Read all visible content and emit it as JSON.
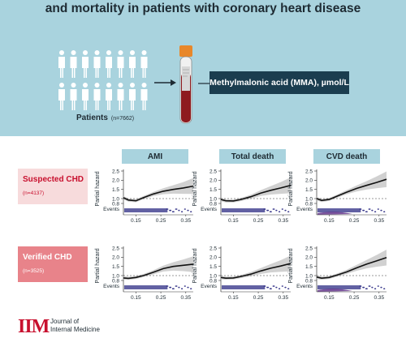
{
  "header": {
    "title": "and mortality in patients with coronary heart disease"
  },
  "patients": {
    "label": "Patients",
    "count": "(n=7662)"
  },
  "biomarker_label": "Methylmalonic acid (MMA), µmol/L",
  "columns": [
    "AMI",
    "Total death",
    "CVD death"
  ],
  "rows": [
    {
      "label": "Suspected CHD",
      "n": "(n=4137)",
      "bg": "#f7dbdc",
      "color": "#c8102e"
    },
    {
      "label": "Verified CHD",
      "n": "(n=3525)",
      "bg": "#e8838a",
      "color": "#ffffff"
    }
  ],
  "axis": {
    "ylabel": "Partial hazard",
    "events_label": "Events",
    "yticks": [
      "2.5",
      "2.0",
      "1.5",
      "1.0",
      "0.8"
    ],
    "xticks": [
      "0.15",
      "0.25",
      "0.35"
    ]
  },
  "chart_data": [
    {
      "type": "line",
      "row": "Suspected CHD",
      "column": "AMI",
      "x": [
        0.1,
        0.12,
        0.15,
        0.18,
        0.22,
        0.26,
        0.3,
        0.34,
        0.38
      ],
      "y": [
        1.05,
        0.92,
        0.88,
        1.05,
        1.25,
        1.4,
        1.5,
        1.58,
        1.68
      ],
      "reference": 1.0,
      "ylim": [
        0.6,
        2.6
      ],
      "xlim": [
        0.1,
        0.38
      ]
    },
    {
      "type": "line",
      "row": "Suspected CHD",
      "column": "Total death",
      "x": [
        0.1,
        0.12,
        0.15,
        0.18,
        0.22,
        0.26,
        0.3,
        0.34,
        0.38
      ],
      "y": [
        0.95,
        0.88,
        0.87,
        0.95,
        1.1,
        1.3,
        1.45,
        1.58,
        1.72
      ],
      "reference": 1.0,
      "ylim": [
        0.6,
        2.6
      ],
      "xlim": [
        0.1,
        0.38
      ]
    },
    {
      "type": "line",
      "row": "Suspected CHD",
      "column": "CVD death",
      "x": [
        0.1,
        0.12,
        0.15,
        0.18,
        0.22,
        0.26,
        0.3,
        0.34,
        0.38
      ],
      "y": [
        1.0,
        0.9,
        0.95,
        1.12,
        1.35,
        1.55,
        1.72,
        1.88,
        2.05
      ],
      "reference": 1.0,
      "ylim": [
        0.6,
        2.6
      ],
      "xlim": [
        0.1,
        0.38
      ]
    },
    {
      "type": "line",
      "row": "Verified CHD",
      "column": "AMI",
      "x": [
        0.1,
        0.12,
        0.15,
        0.18,
        0.22,
        0.26,
        0.3,
        0.34,
        0.38
      ],
      "y": [
        0.87,
        0.85,
        0.9,
        1.0,
        1.18,
        1.38,
        1.5,
        1.56,
        1.62
      ],
      "reference": 1.0,
      "ylim": [
        0.6,
        2.6
      ],
      "xlim": [
        0.1,
        0.38
      ]
    },
    {
      "type": "line",
      "row": "Verified CHD",
      "column": "Total death",
      "x": [
        0.1,
        0.12,
        0.15,
        0.18,
        0.22,
        0.26,
        0.3,
        0.34,
        0.38
      ],
      "y": [
        0.9,
        0.86,
        0.87,
        0.95,
        1.08,
        1.25,
        1.4,
        1.52,
        1.66
      ],
      "reference": 1.0,
      "ylim": [
        0.6,
        2.6
      ],
      "xlim": [
        0.1,
        0.38
      ]
    },
    {
      "type": "line",
      "row": "Verified CHD",
      "column": "CVD death",
      "x": [
        0.1,
        0.12,
        0.15,
        0.18,
        0.22,
        0.26,
        0.3,
        0.34,
        0.38
      ],
      "y": [
        0.92,
        0.86,
        0.9,
        1.02,
        1.2,
        1.42,
        1.62,
        1.8,
        1.98
      ],
      "reference": 1.0,
      "ylim": [
        0.6,
        2.6
      ],
      "xlim": [
        0.1,
        0.38
      ]
    }
  ],
  "footer": {
    "logo_mark": "IIM",
    "journal_line1": "Journal of",
    "journal_line2": "Internal Medicine"
  },
  "colors": {
    "banner": "#a9d3de",
    "dark": "#1b3d4f",
    "curve": "#111111",
    "band": "#c9c9c9",
    "events": "#3b3a8c",
    "brand_red": "#c8102e"
  }
}
